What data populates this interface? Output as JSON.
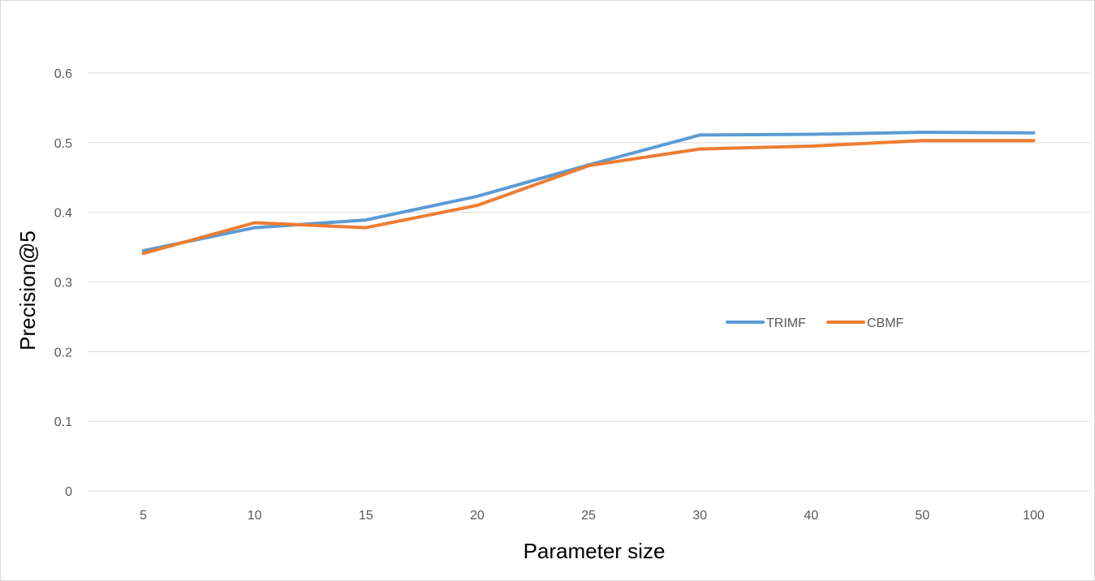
{
  "chart_data": {
    "type": "line",
    "title": "",
    "xlabel": "Parameter size",
    "ylabel": "Precision@5",
    "categories": [
      "5",
      "10",
      "15",
      "20",
      "25",
      "30",
      "40",
      "50",
      "100"
    ],
    "series": [
      {
        "name": "TRIMF",
        "color": "#5b9bd5",
        "values": [
          0.345,
          0.378,
          0.389,
          0.423,
          0.468,
          0.511,
          0.512,
          0.515,
          0.514
        ]
      },
      {
        "name": "CBMF",
        "color": "#ed7d31",
        "values": [
          0.341,
          0.385,
          0.378,
          0.41,
          0.467,
          0.491,
          0.495,
          0.503,
          0.503
        ]
      }
    ],
    "ylim": [
      0,
      0.6
    ],
    "yticks": [
      "0",
      "0.1",
      "0.2",
      "0.3",
      "0.4",
      "0.5",
      "0.6"
    ],
    "grid": true,
    "legend_position": "inside-right"
  }
}
